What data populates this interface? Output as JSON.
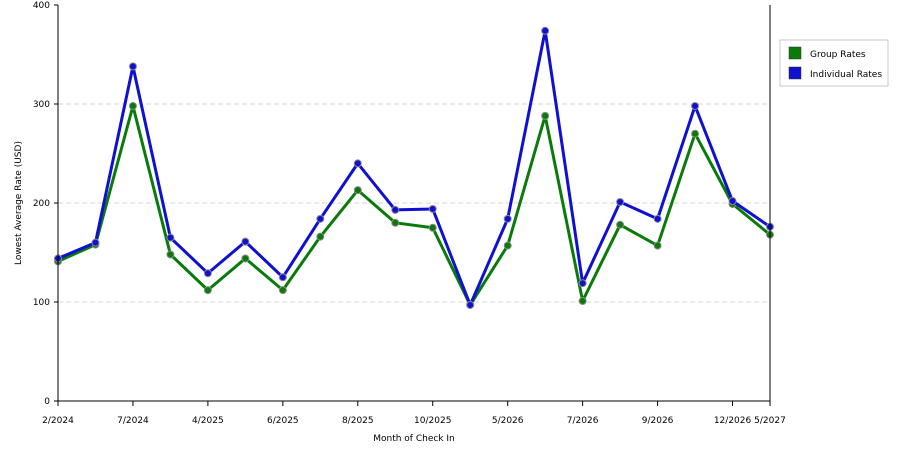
{
  "chart_data": {
    "type": "line",
    "xlabel": "Month of Check In",
    "ylabel": "Lowest Average Rate (USD)",
    "ylim": [
      0,
      400
    ],
    "yticks": [
      0,
      100,
      200,
      300,
      400
    ],
    "grid": "horizontal dashed",
    "legend_position": "right",
    "x_tick_labels": [
      {
        "label": "2/2024",
        "index": 0
      },
      {
        "label": "7/2024",
        "index": 2
      },
      {
        "label": "4/2025",
        "index": 4
      },
      {
        "label": "6/2025",
        "index": 6
      },
      {
        "label": "8/2025",
        "index": 8
      },
      {
        "label": "10/2025",
        "index": 10
      },
      {
        "label": "5/2026",
        "index": 12
      },
      {
        "label": "7/2026",
        "index": 14
      },
      {
        "label": "9/2026",
        "index": 16
      },
      {
        "label": "12/2026",
        "index": 18
      },
      {
        "label": "5/2027",
        "index": 19
      }
    ],
    "point_x": [
      0,
      1,
      2,
      3,
      4,
      5,
      6,
      7,
      8,
      9,
      10,
      11,
      12,
      13,
      14,
      15,
      16,
      17,
      18,
      19
    ],
    "series": [
      {
        "name": "Group Rates",
        "color": "#0a7a0a",
        "values": [
          141,
          158,
          298,
          148,
          112,
          144,
          112,
          166,
          213,
          180,
          175,
          97,
          157,
          288,
          101,
          178,
          157,
          270,
          199,
          168
        ]
      },
      {
        "name": "Individual Rates",
        "color": "#1010d0",
        "values": [
          144,
          160,
          338,
          165,
          129,
          161,
          125,
          184,
          240,
          193,
          194,
          97,
          184,
          374,
          119,
          201,
          184,
          298,
          202,
          176
        ]
      }
    ]
  }
}
